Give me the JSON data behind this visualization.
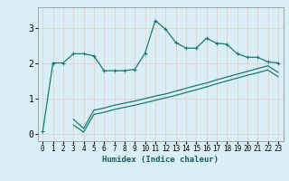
{
  "xlabel": "Humidex (Indice chaleur)",
  "background_color": "#d9eff5",
  "grid_color": "#c8dde0",
  "line_color": "#1a7a6e",
  "xlim": [
    -0.5,
    23.5
  ],
  "ylim": [
    -0.2,
    3.6
  ],
  "xtick_labels": [
    "0",
    "1",
    "2",
    "3",
    "4",
    "5",
    "6",
    "7",
    "8",
    "9",
    "10",
    "11",
    "12",
    "13",
    "14",
    "15",
    "16",
    "17",
    "18",
    "19",
    "20",
    "21",
    "22",
    "23"
  ],
  "yticks": [
    0,
    1,
    2,
    3
  ],
  "curve1_x": [
    0,
    1,
    2,
    3,
    4,
    5,
    6,
    7,
    8,
    9,
    10,
    11,
    12,
    13,
    14,
    15,
    16,
    17,
    18,
    19,
    20,
    21,
    22,
    23
  ],
  "curve1_y": [
    0.07,
    2.02,
    2.02,
    2.28,
    2.28,
    2.22,
    1.8,
    1.8,
    1.8,
    1.84,
    2.3,
    3.22,
    2.98,
    2.6,
    2.44,
    2.44,
    2.72,
    2.58,
    2.55,
    2.28,
    2.18,
    2.18,
    2.05,
    2.02
  ],
  "curve2_x": [
    3,
    4,
    5,
    6,
    7,
    8,
    9,
    10,
    11,
    12,
    13,
    14,
    15,
    16,
    17,
    18,
    19,
    20,
    21,
    22,
    23
  ],
  "curve2_y": [
    0.42,
    0.16,
    0.68,
    0.74,
    0.82,
    0.88,
    0.94,
    1.01,
    1.08,
    1.14,
    1.22,
    1.3,
    1.38,
    1.45,
    1.54,
    1.62,
    1.7,
    1.78,
    1.86,
    1.94,
    1.75
  ],
  "curve3_x": [
    3,
    4,
    5,
    6,
    7,
    8,
    9,
    10,
    11,
    12,
    13,
    14,
    15,
    16,
    17,
    18,
    19,
    20,
    21,
    22,
    23
  ],
  "curve3_y": [
    0.26,
    0.06,
    0.56,
    0.62,
    0.7,
    0.76,
    0.82,
    0.89,
    0.96,
    1.03,
    1.1,
    1.18,
    1.26,
    1.34,
    1.43,
    1.51,
    1.59,
    1.67,
    1.74,
    1.82,
    1.63
  ],
  "marker_size": 3,
  "linewidth": 0.9
}
